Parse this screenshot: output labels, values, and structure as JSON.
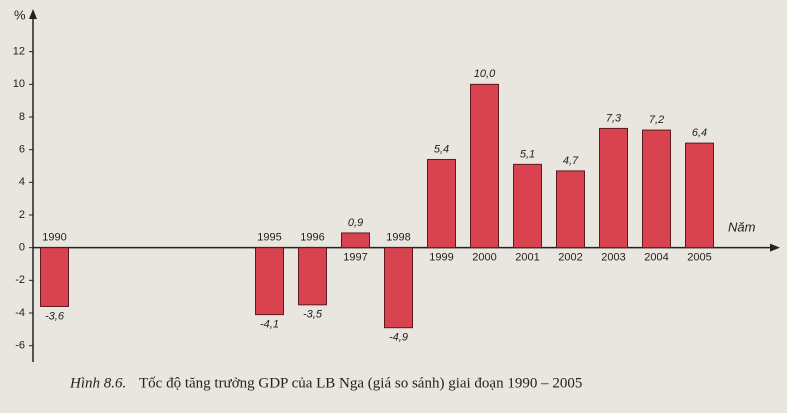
{
  "chart_data": {
    "type": "bar",
    "y_label": "%",
    "x_label": "Năm",
    "caption_label": "Hình 8.6.",
    "caption": "Tốc độ tăng trưởng GDP của LB Nga (giá so sánh) giai đoạn 1990 – 2005",
    "x": [
      1990,
      1995,
      1996,
      1997,
      1998,
      1999,
      2000,
      2001,
      2002,
      2003,
      2004,
      2005
    ],
    "values": [
      -3.6,
      -4.1,
      -3.5,
      0.9,
      -4.9,
      5.4,
      10.0,
      5.1,
      4.7,
      7.3,
      7.2,
      6.4
    ],
    "value_labels": [
      "-3,6",
      "-4,1",
      "-3,5",
      "0,9",
      "-4,9",
      "5,4",
      "10,0",
      "5,1",
      "4,7",
      "7,3",
      "7,2",
      "6,4"
    ],
    "color": "#d8434f",
    "xlim": [
      1989.5,
      2006.5
    ],
    "ylim": [
      -7,
      14
    ],
    "yticks": [
      -6,
      -4,
      -2,
      0,
      2,
      4,
      6,
      8,
      10,
      12
    ]
  }
}
